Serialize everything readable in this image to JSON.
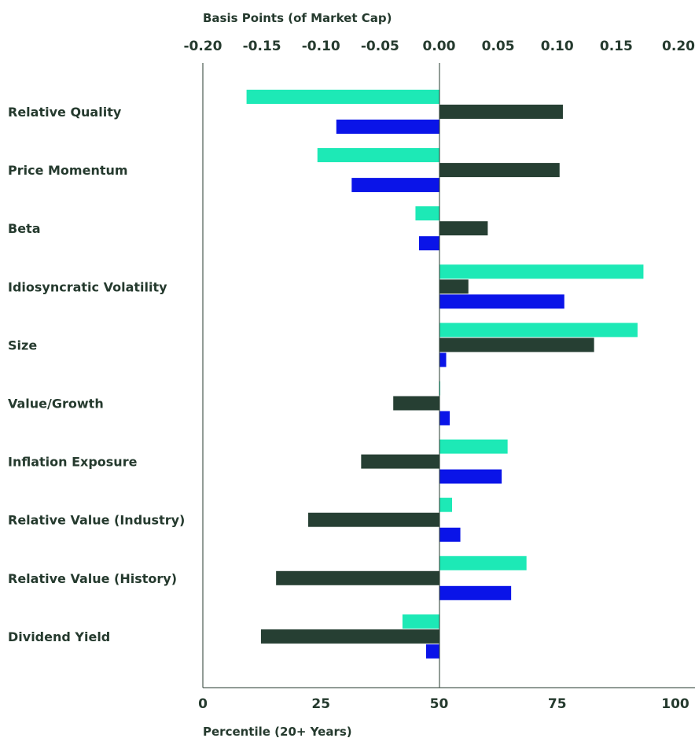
{
  "chart_data": {
    "type": "bar",
    "orientation": "horizontal",
    "top_axis": {
      "title": "Basis Points (of Market Cap)",
      "range": [
        -0.2,
        0.2
      ],
      "ticks": [
        "-0.20",
        "-0.15",
        "-0.10",
        "-0.05",
        "0.00",
        "0.05",
        "0.10",
        "0.15",
        "0.20"
      ]
    },
    "bottom_axis": {
      "title": "Percentile (20+ Years)",
      "range": [
        0,
        100
      ],
      "ticks": [
        "0",
        "25",
        "50",
        "75",
        "100"
      ]
    },
    "categories": [
      "Relative Quality",
      "Price Momentum",
      "Beta",
      "Idiosyncratic Volatility",
      "Size",
      "Value/Growth",
      "Inflation Exposure",
      "Relative Value (Industry)",
      "Relative Value (History)",
      "Dividend Yield"
    ],
    "series": [
      {
        "axis": "top",
        "color": "#1de9b6",
        "values": [
          -0.163,
          -0.103,
          -0.02,
          0.173,
          0.168,
          0.001,
          0.058,
          0.011,
          0.074,
          -0.031
        ]
      },
      {
        "axis": "bottom",
        "color": "#263f33",
        "values": [
          76.2,
          75.5,
          60.3,
          56.2,
          82.8,
          40.3,
          33.5,
          22.3,
          15.5,
          12.3
        ]
      },
      {
        "axis": "top",
        "color": "#0a14e8",
        "values": [
          -0.087,
          -0.074,
          -0.017,
          0.106,
          0.006,
          0.009,
          0.053,
          0.018,
          0.061,
          -0.011
        ]
      }
    ],
    "grid": false,
    "legend": "none"
  }
}
